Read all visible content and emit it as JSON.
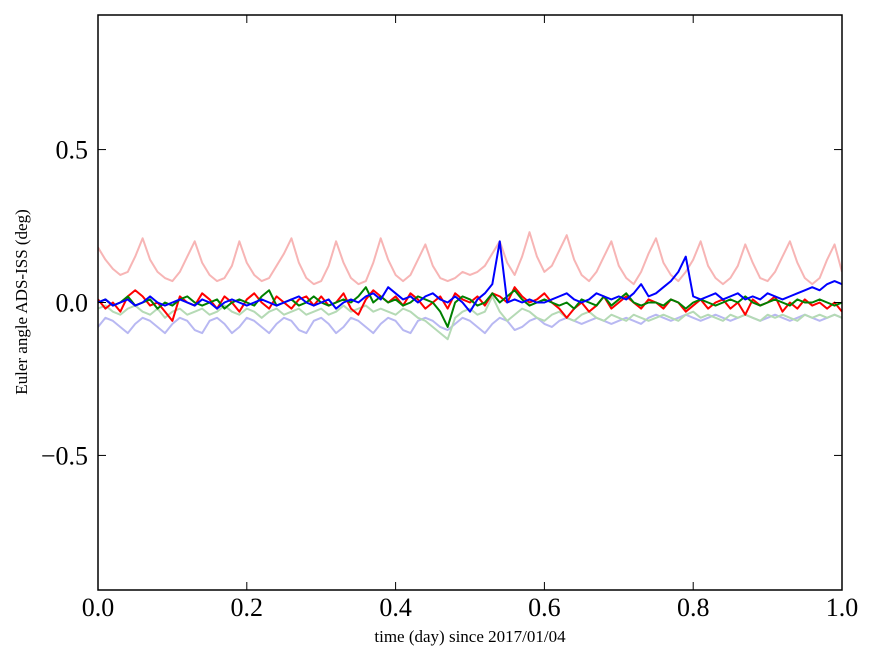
{
  "chart_data": {
    "type": "line",
    "xlabel": "time (day) since 2017/01/04",
    "ylabel": "Euler angle ADS-ISS (deg)",
    "x": [
      0,
      0.01,
      0.02,
      0.03,
      0.04,
      0.05,
      0.06,
      0.07,
      0.08,
      0.09,
      0.1,
      0.11,
      0.12,
      0.13,
      0.14,
      0.15,
      0.16,
      0.17,
      0.18,
      0.19,
      0.2,
      0.21,
      0.22,
      0.23,
      0.24,
      0.25,
      0.26,
      0.27,
      0.28,
      0.29,
      0.3,
      0.31,
      0.32,
      0.33,
      0.34,
      0.35,
      0.36,
      0.37,
      0.38,
      0.39,
      0.4,
      0.41,
      0.42,
      0.43,
      0.44,
      0.45,
      0.46,
      0.47,
      0.48,
      0.49,
      0.5,
      0.51,
      0.52,
      0.53,
      0.54,
      0.55,
      0.56,
      0.57,
      0.58,
      0.59,
      0.6,
      0.61,
      0.62,
      0.63,
      0.64,
      0.65,
      0.66,
      0.67,
      0.68,
      0.69,
      0.7,
      0.71,
      0.72,
      0.73,
      0.74,
      0.75,
      0.76,
      0.77,
      0.78,
      0.79,
      0.8,
      0.81,
      0.82,
      0.83,
      0.84,
      0.85,
      0.86,
      0.87,
      0.88,
      0.89,
      0.9,
      0.91,
      0.92,
      0.93,
      0.94,
      0.95,
      0.96,
      0.97,
      0.98,
      0.99,
      1
    ],
    "series": [
      {
        "color": "#f7b5b5",
        "values": [
          0.18,
          0.14,
          0.11,
          0.09,
          0.1,
          0.15,
          0.21,
          0.14,
          0.1,
          0.08,
          0.07,
          0.1,
          0.15,
          0.2,
          0.13,
          0.09,
          0.07,
          0.08,
          0.12,
          0.2,
          0.13,
          0.09,
          0.07,
          0.08,
          0.12,
          0.16,
          0.21,
          0.13,
          0.08,
          0.06,
          0.07,
          0.12,
          0.2,
          0.13,
          0.08,
          0.06,
          0.07,
          0.13,
          0.21,
          0.14,
          0.09,
          0.07,
          0.09,
          0.14,
          0.19,
          0.12,
          0.08,
          0.07,
          0.08,
          0.1,
          0.09,
          0.1,
          0.12,
          0.16,
          0.2,
          0.13,
          0.09,
          0.15,
          0.23,
          0.15,
          0.1,
          0.12,
          0.17,
          0.22,
          0.14,
          0.09,
          0.07,
          0.1,
          0.15,
          0.2,
          0.12,
          0.08,
          0.06,
          0.1,
          0.16,
          0.21,
          0.13,
          0.09,
          0.07,
          0.1,
          0.14,
          0.2,
          0.12,
          0.08,
          0.06,
          0.08,
          0.12,
          0.19,
          0.13,
          0.08,
          0.07,
          0.1,
          0.15,
          0.2,
          0.13,
          0.08,
          0.06,
          0.08,
          0.14,
          0.19,
          0.1
        ]
      },
      {
        "color": "#b8b8f2",
        "values": [
          -0.08,
          -0.05,
          -0.06,
          -0.08,
          -0.1,
          -0.07,
          -0.05,
          -0.06,
          -0.08,
          -0.1,
          -0.07,
          -0.05,
          -0.06,
          -0.09,
          -0.1,
          -0.06,
          -0.05,
          -0.07,
          -0.1,
          -0.08,
          -0.05,
          -0.06,
          -0.08,
          -0.1,
          -0.07,
          -0.05,
          -0.06,
          -0.09,
          -0.1,
          -0.06,
          -0.05,
          -0.07,
          -0.1,
          -0.08,
          -0.05,
          -0.06,
          -0.08,
          -0.1,
          -0.07,
          -0.05,
          -0.06,
          -0.09,
          -0.1,
          -0.06,
          -0.05,
          -0.06,
          -0.08,
          -0.09,
          -0.07,
          -0.05,
          -0.06,
          -0.08,
          -0.1,
          -0.07,
          -0.05,
          -0.06,
          -0.09,
          -0.08,
          -0.06,
          -0.05,
          -0.07,
          -0.08,
          -0.06,
          -0.05,
          -0.06,
          -0.07,
          -0.06,
          -0.05,
          -0.06,
          -0.07,
          -0.06,
          -0.05,
          -0.06,
          -0.07,
          -0.05,
          -0.04,
          -0.05,
          -0.06,
          -0.05,
          -0.04,
          -0.05,
          -0.06,
          -0.05,
          -0.04,
          -0.05,
          -0.06,
          -0.05,
          -0.04,
          -0.05,
          -0.06,
          -0.05,
          -0.04,
          -0.05,
          -0.06,
          -0.05,
          -0.04,
          -0.05,
          -0.06,
          -0.05,
          -0.04,
          -0.05
        ]
      },
      {
        "color": "#b5dab5",
        "values": [
          -0.02,
          -0.01,
          -0.03,
          -0.04,
          -0.02,
          -0.01,
          -0.03,
          -0.04,
          -0.02,
          -0.05,
          -0.03,
          -0.02,
          -0.04,
          -0.03,
          -0.02,
          -0.04,
          -0.03,
          -0.01,
          -0.03,
          -0.04,
          -0.02,
          -0.03,
          -0.05,
          -0.03,
          -0.02,
          -0.04,
          -0.03,
          -0.02,
          -0.04,
          -0.03,
          -0.02,
          -0.04,
          -0.03,
          -0.01,
          -0.03,
          -0.02,
          -0.01,
          -0.03,
          -0.02,
          -0.03,
          -0.04,
          -0.02,
          -0.03,
          -0.05,
          -0.06,
          -0.08,
          -0.1,
          -0.12,
          -0.05,
          -0.03,
          -0.02,
          -0.04,
          -0.03,
          0.02,
          -0.03,
          -0.06,
          -0.04,
          -0.02,
          -0.03,
          -0.05,
          -0.06,
          -0.04,
          -0.03,
          -0.05,
          -0.06,
          -0.04,
          -0.03,
          -0.05,
          -0.06,
          -0.04,
          -0.05,
          -0.06,
          -0.04,
          -0.05,
          -0.06,
          -0.05,
          -0.04,
          -0.05,
          -0.06,
          -0.04,
          -0.03,
          -0.05,
          -0.04,
          -0.05,
          -0.06,
          -0.04,
          -0.05,
          -0.04,
          -0.05,
          -0.06,
          -0.04,
          -0.05,
          -0.04,
          -0.05,
          -0.06,
          -0.04,
          -0.05,
          -0.04,
          -0.05,
          -0.04,
          -0.05
        ]
      },
      {
        "color": "#ff0000",
        "values": [
          0.01,
          -0.02,
          0.0,
          -0.03,
          0.02,
          0.04,
          0.02,
          -0.01,
          0.0,
          -0.03,
          -0.06,
          0.02,
          0.0,
          -0.01,
          0.03,
          0.01,
          -0.02,
          0.02,
          0.0,
          -0.03,
          0.01,
          0.03,
          0.0,
          -0.02,
          0.02,
          0.0,
          -0.02,
          0.01,
          0.02,
          -0.01,
          0.02,
          -0.01,
          0.0,
          0.03,
          -0.02,
          -0.04,
          0.01,
          0.04,
          0.02,
          0.0,
          0.02,
          -0.01,
          0.03,
          0.01,
          -0.02,
          0.0,
          0.02,
          -0.02,
          0.03,
          0.01,
          0.0,
          0.02,
          -0.01,
          0.03,
          0.02,
          0.0,
          0.05,
          0.02,
          0.0,
          0.01,
          0.03,
          0.0,
          -0.02,
          -0.05,
          -0.02,
          0.0,
          -0.03,
          -0.01,
          0.02,
          -0.02,
          0.0,
          0.02,
          0.0,
          -0.02,
          0.01,
          0.0,
          -0.02,
          0.01,
          0.0,
          -0.03,
          -0.01,
          0.01,
          -0.02,
          0.0,
          0.01,
          -0.02,
          0.0,
          -0.04,
          0.01,
          -0.01,
          0.0,
          0.02,
          -0.03,
          0.0,
          -0.02,
          0.01,
          -0.01,
          0.0,
          -0.02,
          0.0,
          -0.03
        ]
      },
      {
        "color": "#008000",
        "values": [
          0.0,
          0.01,
          -0.01,
          0.0,
          0.02,
          -0.01,
          0.0,
          0.01,
          -0.02,
          0.0,
          -0.01,
          0.01,
          0.02,
          0.0,
          -0.01,
          0.0,
          0.01,
          -0.02,
          0.0,
          0.01,
          0.0,
          -0.01,
          0.02,
          0.04,
          -0.01,
          0.0,
          0.01,
          -0.01,
          0.0,
          0.02,
          0.0,
          -0.01,
          0.0,
          0.01,
          0.0,
          0.02,
          0.05,
          0.0,
          0.02,
          0.0,
          0.01,
          -0.01,
          0.0,
          0.02,
          0.01,
          0.0,
          -0.03,
          -0.08,
          0.0,
          0.02,
          0.01,
          -0.01,
          0.0,
          0.03,
          0.0,
          0.02,
          0.04,
          0.01,
          -0.01,
          0.0,
          0.01,
          0.0,
          -0.01,
          0.0,
          -0.02,
          0.01,
          0.0,
          -0.01,
          0.02,
          -0.01,
          0.01,
          0.03,
          0.0,
          -0.01,
          0.0,
          0.0,
          -0.01,
          0.01,
          0.0,
          -0.02,
          0.0,
          0.01,
          0.0,
          -0.01,
          0.0,
          0.01,
          0.0,
          0.02,
          0.0,
          -0.01,
          0.0,
          0.01,
          0.0,
          -0.01,
          0.01,
          0.0,
          0.0,
          0.01,
          0.0,
          -0.01,
          0.0
        ]
      },
      {
        "color": "#0000ff",
        "values": [
          0.0,
          0.01,
          -0.01,
          0.0,
          0.01,
          -0.01,
          0.0,
          0.02,
          0.0,
          -0.01,
          0.0,
          0.01,
          0.0,
          -0.01,
          0.01,
          0.0,
          -0.02,
          0.0,
          0.01,
          0.0,
          -0.01,
          0.0,
          0.01,
          0.0,
          -0.01,
          0.0,
          0.01,
          0.02,
          0.0,
          -0.01,
          0.0,
          0.01,
          -0.02,
          0.0,
          0.01,
          0.0,
          0.02,
          0.03,
          0.01,
          0.05,
          0.03,
          0.01,
          0.02,
          0.0,
          0.02,
          0.03,
          0.01,
          0.0,
          0.02,
          0.0,
          -0.03,
          0.01,
          0.03,
          0.06,
          0.2,
          0.0,
          0.01,
          0.0,
          0.01,
          0.0,
          0.0,
          0.01,
          0.02,
          0.03,
          0.01,
          0.0,
          0.01,
          0.03,
          0.02,
          0.01,
          0.02,
          0.01,
          0.03,
          0.06,
          0.02,
          0.03,
          0.05,
          0.07,
          0.1,
          0.15,
          0.02,
          0.01,
          0.02,
          0.03,
          0.01,
          0.02,
          0.03,
          0.01,
          0.02,
          0.01,
          0.03,
          0.02,
          0.01,
          0.02,
          0.03,
          0.04,
          0.05,
          0.04,
          0.06,
          0.07,
          0.06
        ]
      }
    ],
    "xlim": [
      0,
      1
    ],
    "ylim": [
      -0.94,
      0.94
    ],
    "xticks": [
      {
        "value": 0,
        "label": "0.0"
      },
      0.2,
      0.4,
      0.6,
      0.8,
      {
        "value": 1,
        "label": "1.0"
      }
    ],
    "yticks": [
      {
        "value": -0.5,
        "label": "−0.5"
      },
      {
        "value": 0,
        "label": "0.0"
      },
      0.5
    ]
  }
}
